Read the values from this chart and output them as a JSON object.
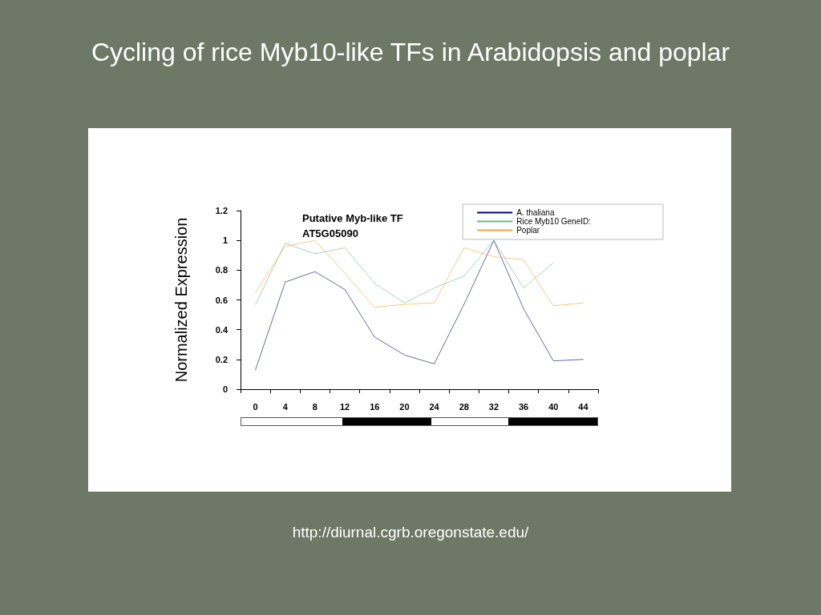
{
  "chart_data": {
    "type": "line",
    "title": "Cycling of rice Myb10-like TFs in Arabidopsis and poplar",
    "subtitle": "Putative Myb-like TF\nAT5G05090",
    "ylabel": "Normalized Expression",
    "annotations": [
      "http://diurnal.cgrb.oregonstate.edu/"
    ],
    "categories": [
      "0",
      "4",
      "8",
      "12",
      "16",
      "20",
      "24",
      "28",
      "32",
      "36",
      "40",
      "44"
    ],
    "series": [
      {
        "name": "A. thaliana",
        "color": "#000080",
        "values": [
          0.13,
          0.72,
          0.79,
          0.67,
          0.35,
          0.23,
          0.17,
          0.57,
          1.0,
          0.54,
          0.19,
          0.2
        ]
      },
      {
        "name": "Rice Myb10 GeneID:",
        "color": "#66bb88",
        "values": [
          0.57,
          0.98,
          0.91,
          0.95,
          0.71,
          0.58,
          0.68,
          0.76,
          1.0,
          0.68,
          0.85,
          null
        ]
      },
      {
        "name": "Poplar",
        "color": "#ffa030",
        "values": [
          0.65,
          0.96,
          1.0,
          0.78,
          0.55,
          0.57,
          0.58,
          0.95,
          0.89,
          0.87,
          0.56,
          0.58
        ]
      }
    ],
    "ylim": [
      0,
      1.2
    ],
    "yticks": [
      0,
      0.2,
      0.4,
      0.6,
      0.8,
      1,
      1.2
    ],
    "grid": false,
    "legend": "top right",
    "marker": "none",
    "line_style": "solid"
  }
}
